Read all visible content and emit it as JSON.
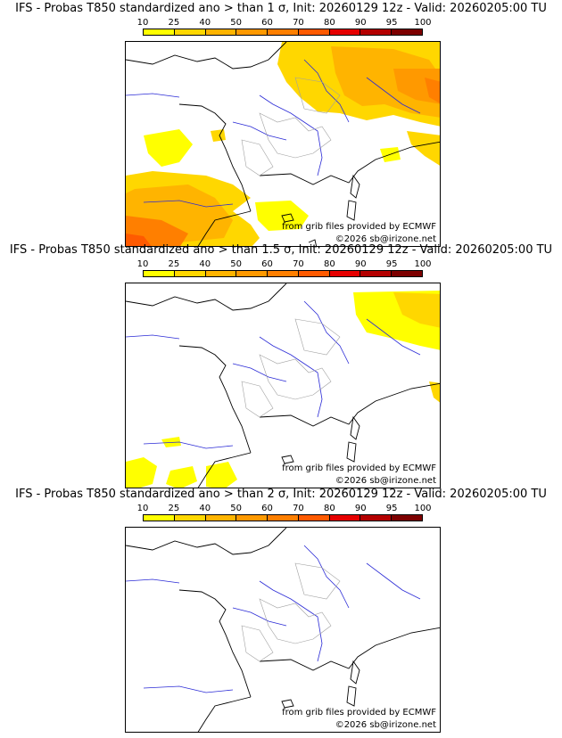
{
  "legend": {
    "labels": [
      "10",
      "25",
      "40",
      "50",
      "60",
      "70",
      "80",
      "90",
      "95",
      "100"
    ],
    "colors": [
      "#ffff00",
      "#ffd700",
      "#ffb400",
      "#ff9900",
      "#ff7f00",
      "#ff5a00",
      "#e60000",
      "#b40000",
      "#7d0000"
    ]
  },
  "panels": [
    {
      "title": "IFS - Probas T850  standardized ano > than 1 σ, Init: 20260129 12z - Valid: 20260205:00 TU",
      "credit_source": "from grib files provided by ECMWF",
      "credit_copy": "©2026 sb@irizone.net"
    },
    {
      "title": "IFS - Probas T850  standardized ano > than 1.5 σ, Init: 20260129 12z - Valid: 20260205:00 TU",
      "credit_source": "from grib files provided by ECMWF",
      "credit_copy": "©2026 sb@irizone.net"
    },
    {
      "title": "IFS - Probas T850  standardized ano > than 2 σ, Init: 20260129 12z - Valid: 20260205:00 TU",
      "credit_source": "from grib files provided by ECMWF",
      "credit_copy": "©2026 sb@irizone.net"
    }
  ],
  "style": {
    "coast": "#000000",
    "river": "#2b2bd6",
    "border": "#a0a0a0"
  }
}
